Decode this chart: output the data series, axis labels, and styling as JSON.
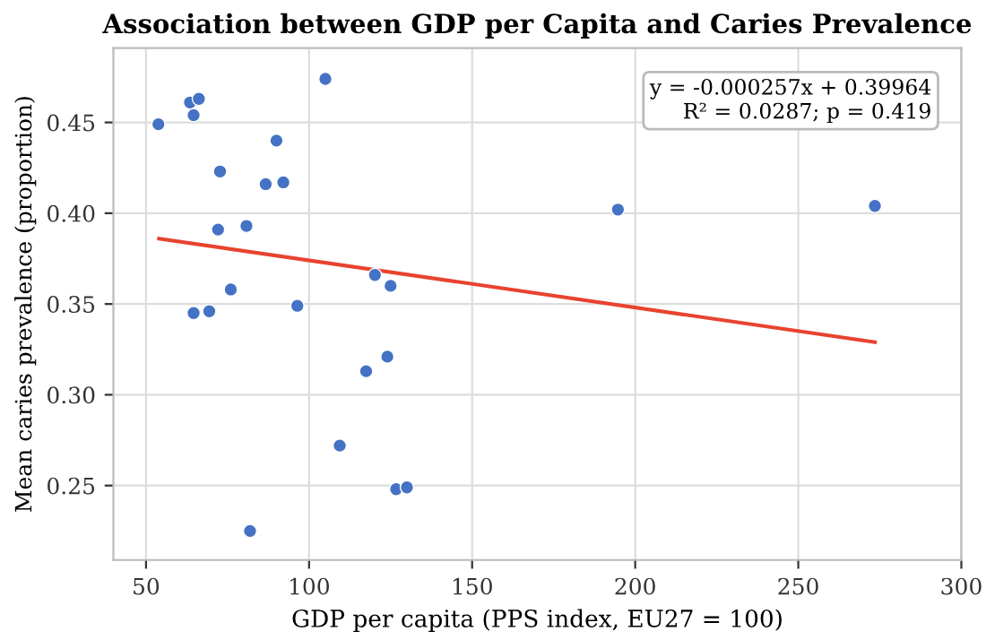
{
  "chart_data": {
    "type": "scatter",
    "title": "Association between GDP per Capita and Caries Prevalence",
    "xlabel": "GDP per capita (PPS index, EU27 = 100)",
    "ylabel": "Mean caries prevalence (proportion)",
    "annotations": [
      "y = -0.000257x + 0.39964\nR² = 0.0287; p = 0.419"
    ],
    "series": [
      {
        "color": "#4472c4",
        "marker": "circle",
        "x": [
          53.8,
          63.5,
          66.2,
          64.6,
          105,
          90,
          72.7,
          86.7,
          92.1,
          72.1,
          80.8,
          76,
          64.6,
          69.4,
          96.4,
          120.2,
          125,
          117.5,
          124,
          109.4,
          126.7,
          130,
          81.9,
          194.7,
          273.5
        ],
        "values": [
          0.449,
          0.461,
          0.463,
          0.454,
          0.474,
          0.44,
          0.423,
          0.416,
          0.417,
          0.391,
          0.393,
          0.358,
          0.345,
          0.346,
          0.349,
          0.366,
          0.36,
          0.313,
          0.321,
          0.272,
          0.248,
          0.249,
          0.225,
          0.402,
          0.404
        ]
      },
      {
        "type": "line",
        "color": "#e8432f",
        "x": [
          54,
          273.5
        ],
        "values": [
          0.386,
          0.329
        ]
      }
    ],
    "xlim": [
      40,
      300
    ],
    "xticks": [
      50,
      100,
      150,
      200,
      250,
      300
    ],
    "ylim": [
      0.209,
      0.491
    ],
    "yticks": [
      {
        "value": 0.25,
        "label": "0.25"
      },
      {
        "value": 0.3,
        "label": "0.30"
      },
      {
        "value": 0.35,
        "label": "0.35"
      },
      {
        "value": 0.4,
        "label": "0.40"
      },
      {
        "value": 0.45,
        "label": "0.45"
      }
    ],
    "grid": true
  }
}
